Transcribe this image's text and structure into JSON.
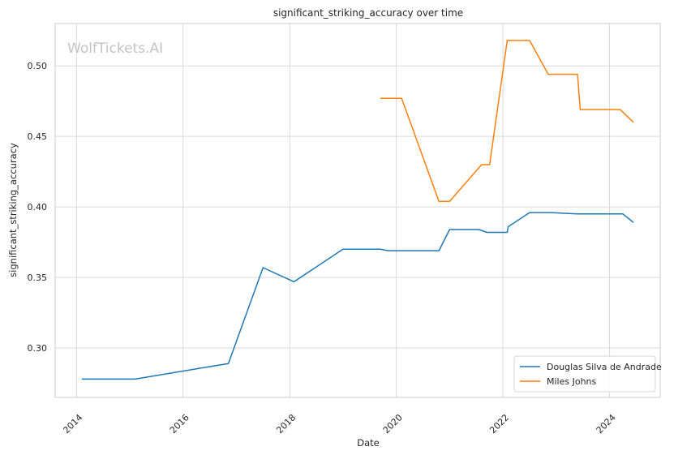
{
  "chart_data": {
    "type": "line",
    "title": "significant_striking_accuracy over time",
    "xlabel": "Date",
    "ylabel": "significant_striking_accuracy",
    "watermark": "WolfTickets.AI",
    "xlim": [
      2013.6,
      2024.95
    ],
    "ylim": [
      0.265,
      0.53
    ],
    "x_ticks": [
      2014,
      2016,
      2018,
      2020,
      2022,
      2024
    ],
    "x_tick_labels": [
      "2014",
      "2016",
      "2018",
      "2020",
      "2022",
      "2024"
    ],
    "y_ticks": [
      0.3,
      0.35,
      0.4,
      0.45,
      0.5
    ],
    "y_tick_labels": [
      "0.30",
      "0.35",
      "0.40",
      "0.45",
      "0.50"
    ],
    "grid": true,
    "legend_position": "bottom-right",
    "series": [
      {
        "name": "Douglas Silva de Andrade",
        "color": "#1f77b4",
        "x": [
          2014.1,
          2015.1,
          2016.85,
          2017.5,
          2018.08,
          2019.0,
          2019.7,
          2019.85,
          2020.8,
          2021.0,
          2021.55,
          2021.7,
          2022.08,
          2022.1,
          2022.5,
          2022.9,
          2023.4,
          2024.25,
          2024.45
        ],
        "y": [
          0.278,
          0.278,
          0.289,
          0.357,
          0.347,
          0.37,
          0.37,
          0.369,
          0.369,
          0.384,
          0.384,
          0.382,
          0.382,
          0.386,
          0.396,
          0.396,
          0.395,
          0.395,
          0.389
        ]
      },
      {
        "name": "Miles Johns",
        "color": "#ff7f0e",
        "x": [
          2019.7,
          2020.1,
          2020.8,
          2021.0,
          2021.6,
          2021.75,
          2022.08,
          2022.5,
          2022.85,
          2023.4,
          2023.45,
          2024.2,
          2024.45
        ],
        "y": [
          0.477,
          0.477,
          0.404,
          0.404,
          0.43,
          0.43,
          0.518,
          0.518,
          0.494,
          0.494,
          0.469,
          0.469,
          0.46
        ]
      }
    ]
  }
}
